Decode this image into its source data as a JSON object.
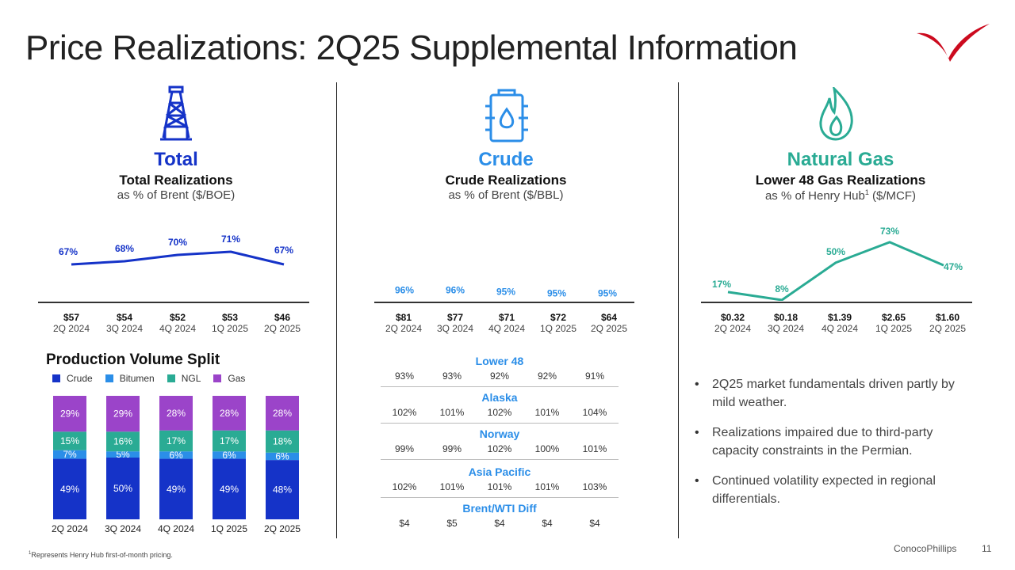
{
  "title": "Price Realizations: 2Q25 Supplemental Information",
  "colors": {
    "total": "#1533c8",
    "crude": "#2b8ee8",
    "gas": "#2aab94",
    "bitumen": "#2b8ee8",
    "ngl": "#2aab94",
    "gas_bar": "#9b44c9",
    "brand_red": "#cc0a1e"
  },
  "icons": {
    "total": "oil-derrick-icon",
    "crude": "oil-barrel-icon",
    "gas": "flame-icon",
    "logo": "conocophillips-logo-icon"
  },
  "total": {
    "category": "Total",
    "subtitle": "Total Realizations",
    "unit": "as % of Brent ($/BOE)"
  },
  "crude": {
    "category": "Crude",
    "subtitle": "Crude Realizations",
    "unit": "as % of Brent ($/BBL)"
  },
  "gas": {
    "category": "Natural Gas",
    "subtitle": "Lower 48 Gas Realizations",
    "unit_pre": "as % of Henry Hub",
    "unit_sup": "1",
    "unit_post": " ($/MCF)"
  },
  "production": {
    "title": "Production Volume Split",
    "legend": [
      "Crude",
      "Bitumen",
      "NGL",
      "Gas"
    ]
  },
  "regions": [
    {
      "name": "Lower 48",
      "values": [
        "93%",
        "93%",
        "92%",
        "92%",
        "91%"
      ]
    },
    {
      "name": "Alaska",
      "values": [
        "102%",
        "101%",
        "102%",
        "101%",
        "104%"
      ]
    },
    {
      "name": "Norway",
      "values": [
        "99%",
        "99%",
        "102%",
        "100%",
        "101%"
      ]
    },
    {
      "name": "Asia Pacific",
      "values": [
        "102%",
        "101%",
        "101%",
        "101%",
        "103%"
      ]
    },
    {
      "name": "Brent/WTI Diff",
      "values": [
        "$4",
        "$5",
        "$4",
        "$4",
        "$4"
      ]
    }
  ],
  "bullets": [
    "2Q25 market fundamentals driven partly by mild weather.",
    "Realizations impaired due to third-party capacity constraints in the Permian.",
    "Continued volatility expected in regional differentials."
  ],
  "footnote_sup": "1",
  "footnote": "Represents Henry Hub first-of-month pricing.",
  "brand": "ConocoPhillips",
  "page": "11",
  "chart_data": [
    {
      "type": "line",
      "title": "Total Realizations",
      "ylabel": "as % of Brent ($/BOE)",
      "categories": [
        "2Q 2024",
        "3Q 2024",
        "4Q 2024",
        "1Q 2025",
        "2Q 2025"
      ],
      "values": [
        67,
        68,
        70,
        71,
        67
      ],
      "value_labels": [
        "67%",
        "68%",
        "70%",
        "71%",
        "67%"
      ],
      "prices": [
        "$57",
        "$54",
        "$52",
        "$53",
        "$46"
      ],
      "ylim": [
        60,
        75
      ]
    },
    {
      "type": "line",
      "title": "Crude Realizations",
      "ylabel": "as % of Brent ($/BBL)",
      "categories": [
        "2Q 2024",
        "3Q 2024",
        "4Q 2024",
        "1Q 2025",
        "2Q 2025"
      ],
      "values": [
        96,
        96,
        95,
        95,
        95
      ],
      "value_labels": [
        "96%",
        "96%",
        "95%",
        "95%",
        "95%"
      ],
      "prices": [
        "$81",
        "$77",
        "$71",
        "$72",
        "$64"
      ],
      "ylim": [
        60,
        140
      ]
    },
    {
      "type": "line",
      "title": "Lower 48 Gas Realizations",
      "ylabel": "as % of Henry Hub ($/MCF)",
      "categories": [
        "2Q 2024",
        "3Q 2024",
        "4Q 2024",
        "1Q 2025",
        "2Q 2025"
      ],
      "values": [
        17,
        8,
        50,
        73,
        47
      ],
      "value_labels": [
        "17%",
        "8%",
        "50%",
        "73%",
        "47%"
      ],
      "prices": [
        "$0.32",
        "$0.18",
        "$1.39",
        "$2.65",
        "$1.60"
      ],
      "ylim": [
        0,
        80
      ]
    },
    {
      "type": "bar",
      "stacked": true,
      "title": "Production Volume Split",
      "categories": [
        "2Q 2024",
        "3Q 2024",
        "4Q 2024",
        "1Q 2025",
        "2Q 2025"
      ],
      "series": [
        {
          "name": "Crude",
          "values": [
            49,
            50,
            49,
            49,
            48
          ],
          "labels": [
            "49%",
            "50%",
            "49%",
            "49%",
            "48%"
          ]
        },
        {
          "name": "Bitumen",
          "values": [
            7,
            5,
            6,
            6,
            6
          ],
          "labels": [
            "7%",
            "5%",
            "6%",
            "6%",
            "6%"
          ]
        },
        {
          "name": "NGL",
          "values": [
            15,
            16,
            17,
            17,
            18
          ],
          "labels": [
            "15%",
            "16%",
            "17%",
            "17%",
            "18%"
          ]
        },
        {
          "name": "Gas",
          "values": [
            29,
            29,
            28,
            28,
            28
          ],
          "labels": [
            "29%",
            "29%",
            "28%",
            "28%",
            "28%"
          ]
        }
      ]
    }
  ]
}
